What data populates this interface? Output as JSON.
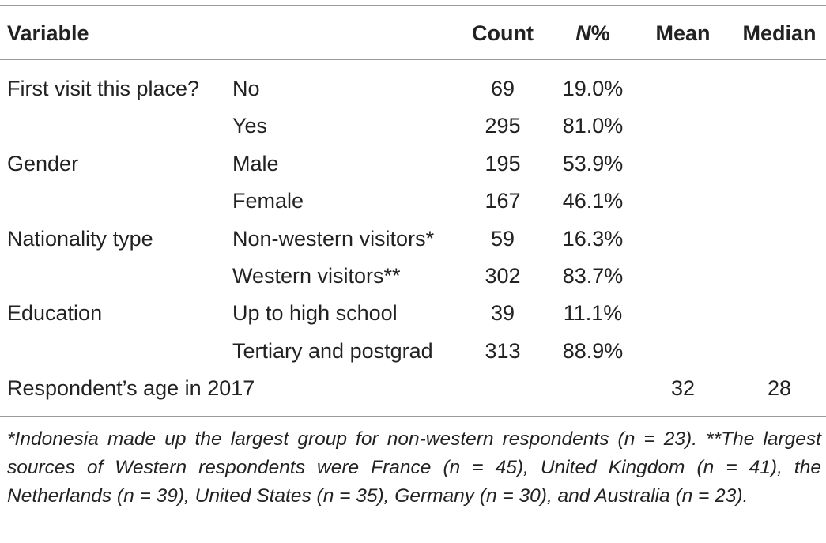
{
  "table": {
    "headers": {
      "variable": "Variable",
      "count": "Count",
      "npct_italic": "N",
      "npct_rest": "%",
      "mean": "Mean",
      "median": "Median"
    },
    "rows": [
      {
        "variable": "First visit this place?",
        "category": "No",
        "count": "69",
        "pct": "19.0%",
        "mean": "",
        "median": ""
      },
      {
        "variable": "",
        "category": "Yes",
        "count": "295",
        "pct": "81.0%",
        "mean": "",
        "median": ""
      },
      {
        "variable": "Gender",
        "category": "Male",
        "count": "195",
        "pct": "53.9%",
        "mean": "",
        "median": ""
      },
      {
        "variable": "",
        "category": "Female",
        "count": "167",
        "pct": "46.1%",
        "mean": "",
        "median": ""
      },
      {
        "variable": "Nationality type",
        "category": "Non-western visitors*",
        "count": "59",
        "pct": "16.3%",
        "mean": "",
        "median": ""
      },
      {
        "variable": "",
        "category": "Western visitors**",
        "count": "302",
        "pct": "83.7%",
        "mean": "",
        "median": ""
      },
      {
        "variable": "Education",
        "category": "Up to high school",
        "count": "39",
        "pct": "11.1%",
        "mean": "",
        "median": ""
      },
      {
        "variable": "",
        "category": "Tertiary and postgrad",
        "count": "313",
        "pct": "88.9%",
        "mean": "",
        "median": ""
      },
      {
        "variable": "Respondent’s age in 2017",
        "category": "",
        "count": "",
        "pct": "",
        "mean": "32",
        "median": "28"
      }
    ]
  },
  "footnote": "*Indonesia made up the largest group for non-western respondents (n = 23). **The largest sources of Western respondents were France (n = 45), United Kingdom (n = 41), the Netherlands (n = 39), United States (n = 35), Germany (n = 30), and Australia (n = 23)."
}
